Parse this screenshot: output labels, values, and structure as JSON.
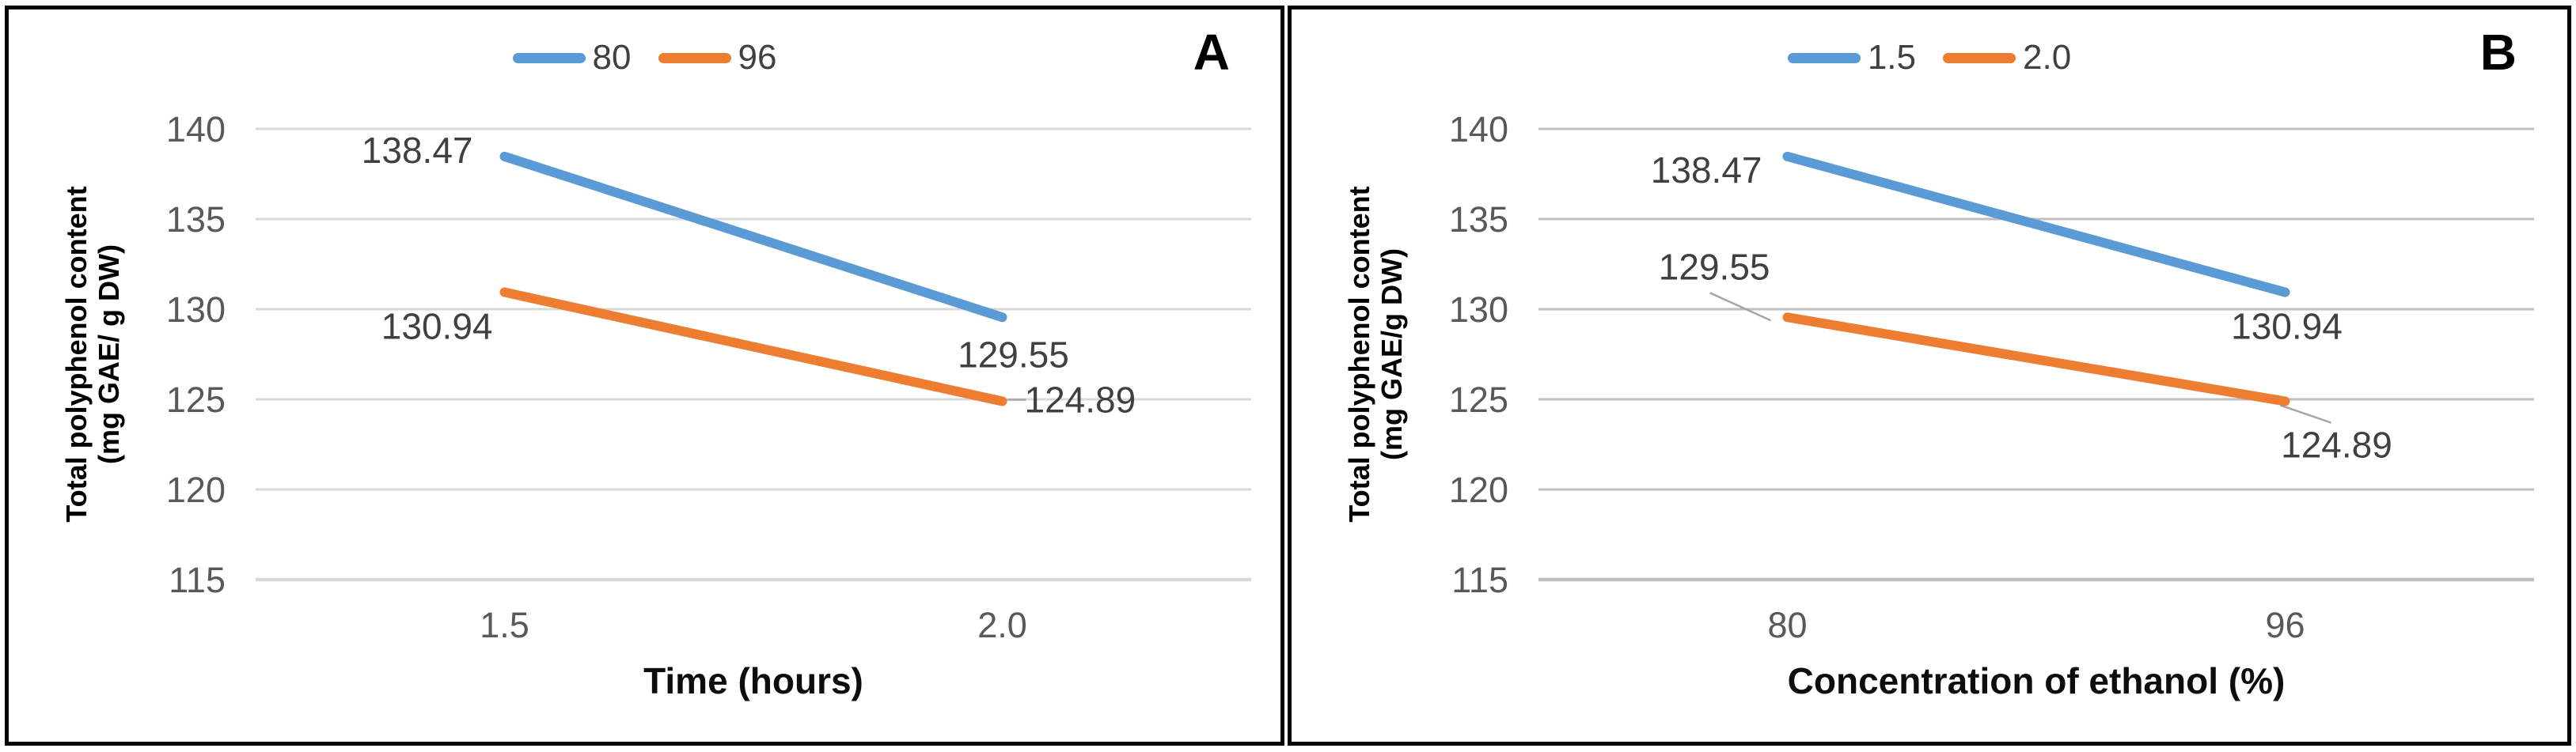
{
  "figure": {
    "description": "Two-panel line chart of total polyphenol content",
    "accent_blue": "#5B9BD5",
    "accent_orange": "#ED7D31",
    "leader_line_color": "#A6A6A6"
  },
  "chart_data": [
    {
      "type": "line",
      "panel_label": "A",
      "title": "",
      "xlabel": "Time (hours)",
      "ylabel_line1": "Total polyphenol content",
      "ylabel_line2": "(mg GAE/ g DW)",
      "categories": [
        "1.5",
        "2.0"
      ],
      "ylim": [
        115,
        140
      ],
      "yticks": [
        140,
        135,
        130,
        125,
        120,
        115
      ],
      "grid": true,
      "grid_color": "#D9D9D9",
      "legend_position": "top-center",
      "series": [
        {
          "name": "80",
          "color": "#5B9BD5",
          "values": [
            138.47,
            129.55
          ],
          "point_labels": [
            {
              "text": "138.47",
              "anchor": "end",
              "dx": -40,
              "dy": -8
            },
            {
              "text": "129.55",
              "anchor": "middle",
              "dx": 14,
              "dy": 47
            }
          ]
        },
        {
          "name": "96",
          "color": "#ED7D31",
          "values": [
            130.94,
            124.89
          ],
          "point_labels": [
            {
              "text": "130.94",
              "anchor": "end",
              "dx": -15,
              "dy": 43
            },
            {
              "text": "124.89",
              "anchor": "start",
              "dx": 28,
              "dy": -2,
              "leader": [
                6,
                -2,
                30,
                -2
              ]
            }
          ]
        }
      ]
    },
    {
      "type": "line",
      "panel_label": "B",
      "title": "",
      "xlabel": "Concentration of ethanol (%)",
      "ylabel_line1": "Total polyphenol  content",
      "ylabel_line2": "(mg GAE/g DW)",
      "categories": [
        "80",
        "96"
      ],
      "ylim": [
        115,
        140
      ],
      "yticks": [
        140,
        135,
        130,
        125,
        120,
        115
      ],
      "grid": true,
      "grid_color": "#BFBFBF",
      "legend_position": "top-center",
      "series": [
        {
          "name": "1.5",
          "color": "#5B9BD5",
          "values": [
            138.47,
            130.94
          ],
          "point_labels": [
            {
              "text": "138.47",
              "anchor": "end",
              "dx": -32,
              "dy": 17
            },
            {
              "text": "130.94",
              "anchor": "middle",
              "dx": 2,
              "dy": 43
            }
          ]
        },
        {
          "name": "2.0",
          "color": "#ED7D31",
          "values": [
            129.55,
            124.89
          ],
          "point_labels": [
            {
              "text": "129.55",
              "anchor": "end",
              "dx": -22,
              "dy": -64,
              "leader": [
                -98,
                -31,
                -21,
                4
              ]
            },
            {
              "text": "124.89",
              "anchor": "middle",
              "dx": 65,
              "dy": 55,
              "leader": [
                -6,
                5,
                58,
                27
              ]
            }
          ]
        }
      ]
    }
  ]
}
